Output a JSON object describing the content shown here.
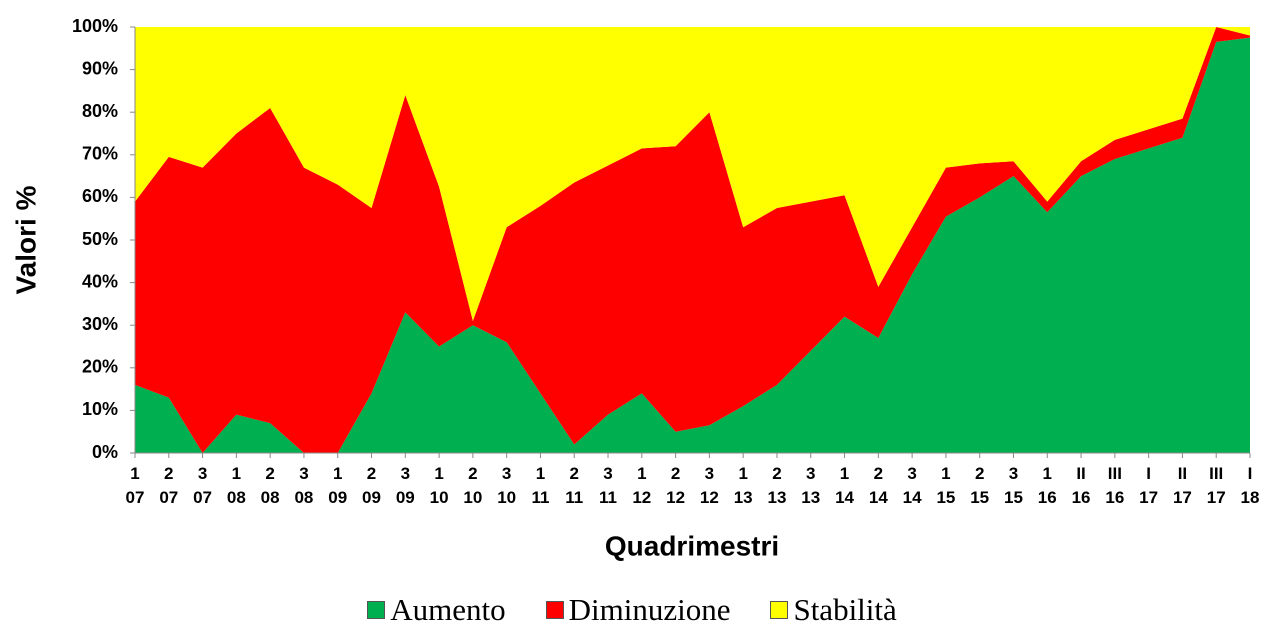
{
  "chart_data": {
    "type": "stacked_area_100",
    "y_label": "Valori %",
    "x_label": "Quadrimestri",
    "categories": [
      "1\n07",
      "2\n07",
      "3\n07",
      "1\n08",
      "2\n08",
      "3\n08",
      "1\n09",
      "2\n09",
      "3\n09",
      "1\n10",
      "2\n10",
      "3\n10",
      "1\n11",
      "2\n11",
      "3\n11",
      "1\n12",
      "2\n12",
      "3\n12",
      "1\n13",
      "2\n13",
      "3\n13",
      "1\n14",
      "2\n14",
      "3\n14",
      "1\n15",
      "2\n15",
      "3\n15",
      "1\n16",
      "II\n16",
      "III\n16",
      "I\n17",
      "II\n17",
      "III\n17",
      "I\n18"
    ],
    "series": [
      {
        "name": "Aumento",
        "color": "#00b050",
        "values": [
          16,
          13,
          0,
          9,
          7,
          0,
          0,
          14,
          33,
          25,
          30,
          26,
          14,
          2,
          9,
          14,
          5,
          6.5,
          11,
          16,
          24,
          32,
          27,
          42,
          55.5,
          60,
          65,
          56.5,
          65,
          69,
          71.5,
          74,
          96.5,
          97.5
        ]
      },
      {
        "name": "Diminuzione",
        "color": "#ff0000",
        "values": [
          43,
          56.5,
          67,
          66,
          74,
          67,
          63,
          43.5,
          51,
          37.5,
          1,
          27,
          44,
          61.5,
          58.5,
          57.5,
          67,
          73.5,
          42,
          41.5,
          35,
          28.5,
          12,
          11,
          11.5,
          8,
          3.5,
          2.5,
          3.5,
          4.5,
          4.5,
          4.5,
          3.5,
          0.5
        ]
      },
      {
        "name": "Stabilità",
        "color": "#ffff00",
        "values": [
          41,
          30.5,
          33,
          25,
          19,
          33,
          37,
          42.5,
          16,
          37.5,
          69,
          47,
          42,
          36.5,
          32.5,
          28.5,
          28,
          20,
          47,
          42.5,
          41,
          39.5,
          61,
          47,
          33,
          32,
          31.5,
          41,
          31.5,
          26.5,
          24,
          21.5,
          0,
          2
        ]
      }
    ],
    "ylim": [
      0,
      100
    ],
    "yticks": [
      {
        "value": 0,
        "label": "0%"
      },
      {
        "value": 10,
        "label": "10%"
      },
      {
        "value": 20,
        "label": "20%"
      },
      {
        "value": 30,
        "label": "30%"
      },
      {
        "value": 40,
        "label": "40%"
      },
      {
        "value": 50,
        "label": "50%"
      },
      {
        "value": 60,
        "label": "60%"
      },
      {
        "value": 70,
        "label": "70%"
      },
      {
        "value": 80,
        "label": "80%"
      },
      {
        "value": 90,
        "label": "90%"
      },
      {
        "value": 100,
        "label": "100%"
      }
    ],
    "grid": false,
    "legend": "bottom"
  }
}
